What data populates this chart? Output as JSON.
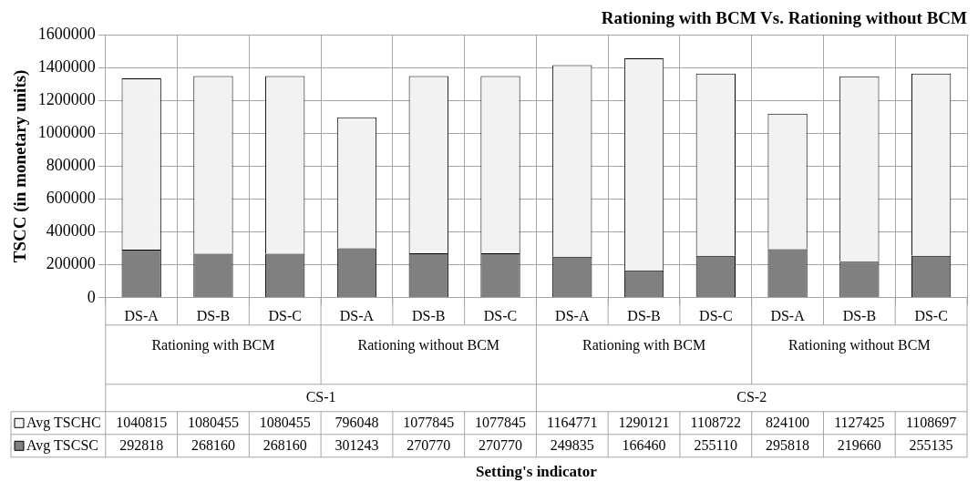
{
  "chart_data": {
    "type": "bar",
    "title": "Rationing with BCM Vs. Rationing without BCM",
    "ylabel": "TSCC (in monetary units)",
    "categories": [
      "DS-A",
      "DS-B",
      "DS-C",
      "DS-A",
      "DS-B",
      "DS-C",
      "DS-A",
      "DS-B",
      "DS-C",
      "DS-A",
      "DS-B",
      "DS-C"
    ],
    "series": [
      {
        "name": "Avg TSCSC",
        "color": "#808080",
        "values": [
          292818,
          268160,
          268160,
          301243,
          270770,
          270770,
          249835,
          166460,
          255110,
          295818,
          219660,
          255135
        ]
      },
      {
        "name": "Avg TSCHC",
        "color": "#f2f2f2",
        "values": [
          1040815,
          1080455,
          1080455,
          796048,
          1077845,
          1077845,
          1164771,
          1290121,
          1108722,
          824100,
          1127425,
          1108697
        ]
      }
    ],
    "annotations": [
      "Rationing with BCM",
      "Rationing without BCM",
      "Rationing with BCM",
      "Rationing without BCM",
      "CS-1",
      "CS-2",
      "Setting's indicator"
    ],
    "stacked": true,
    "data_labels": true,
    "legend": "bottom",
    "grid": true,
    "ylim": [
      0,
      1600000
    ],
    "yticks": [
      0,
      200000,
      400000,
      600000,
      800000,
      1000000,
      1200000,
      1400000,
      1600000
    ]
  }
}
